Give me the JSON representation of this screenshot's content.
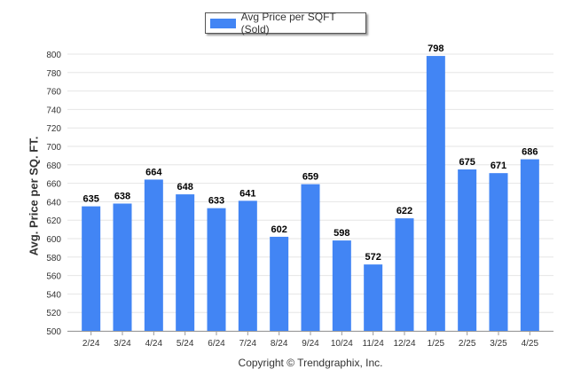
{
  "legend": {
    "label": "Avg Price per SQFT (Sold)"
  },
  "copyright": "Copyright © Trendgraphix, Inc.",
  "colors": {
    "bar": "#4285f4",
    "grid": "#e6e6e6",
    "axis_text": "#333333",
    "label_text": "#000000"
  },
  "chart_data": {
    "type": "bar",
    "categories": [
      "2/24",
      "3/24",
      "4/24",
      "5/24",
      "6/24",
      "7/24",
      "8/24",
      "9/24",
      "10/24",
      "11/24",
      "12/24",
      "1/25",
      "2/25",
      "3/25",
      "4/25"
    ],
    "series": [
      {
        "name": "Avg Price per SQFT (Sold)",
        "values": [
          635,
          638,
          664,
          648,
          633,
          641,
          602,
          659,
          598,
          572,
          622,
          798,
          675,
          671,
          686
        ]
      }
    ],
    "ylabel": "Avg. Price per SQ. FT.",
    "ylim": [
      500,
      800
    ],
    "yticks": [
      500,
      520,
      540,
      560,
      580,
      600,
      620,
      640,
      660,
      680,
      700,
      720,
      740,
      760,
      780,
      800
    ],
    "grid": true,
    "legend_position": "top-center",
    "data_labels": true
  }
}
